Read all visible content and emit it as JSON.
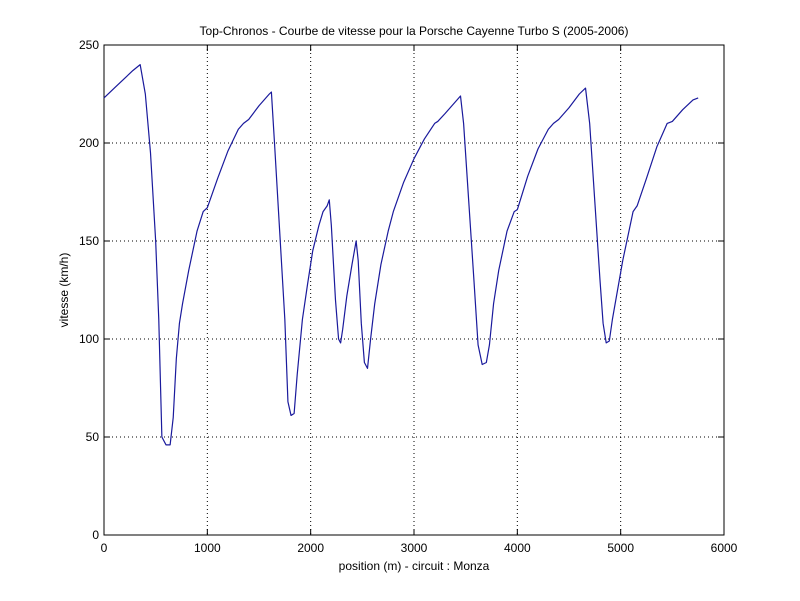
{
  "chart_data": {
    "type": "line",
    "title": "Top-Chronos - Courbe de vitesse pour la Porsche Cayenne Turbo S (2005-2006)",
    "xlabel": "position (m) - circuit : Monza",
    "ylabel": "vitesse (km/h)",
    "xlim": [
      0,
      6000
    ],
    "ylim": [
      0,
      250
    ],
    "xticks": [
      0,
      1000,
      2000,
      3000,
      4000,
      5000,
      6000
    ],
    "yticks": [
      0,
      50,
      100,
      150,
      200,
      250
    ],
    "xtick_labels": [
      "0",
      "1000",
      "2000",
      "3000",
      "4000",
      "5000",
      "6000"
    ],
    "ytick_labels": [
      "0",
      "50",
      "100",
      "150",
      "200",
      "250"
    ],
    "grid": true,
    "line_color": "#1a1a9c",
    "series": [
      {
        "points": [
          [
            0,
            223
          ],
          [
            100,
            228
          ],
          [
            200,
            233
          ],
          [
            280,
            237
          ],
          [
            350,
            240
          ],
          [
            400,
            225
          ],
          [
            450,
            195
          ],
          [
            500,
            150
          ],
          [
            530,
            110
          ],
          [
            560,
            50
          ],
          [
            600,
            46
          ],
          [
            640,
            46
          ],
          [
            670,
            60
          ],
          [
            700,
            90
          ],
          [
            730,
            108
          ],
          [
            760,
            118
          ],
          [
            820,
            135
          ],
          [
            900,
            155
          ],
          [
            960,
            165
          ],
          [
            1000,
            167
          ],
          [
            1100,
            182
          ],
          [
            1200,
            196
          ],
          [
            1300,
            207
          ],
          [
            1350,
            210
          ],
          [
            1400,
            212
          ],
          [
            1500,
            219
          ],
          [
            1600,
            225
          ],
          [
            1620,
            226
          ],
          [
            1650,
            200
          ],
          [
            1700,
            155
          ],
          [
            1750,
            110
          ],
          [
            1780,
            68
          ],
          [
            1810,
            61
          ],
          [
            1840,
            62
          ],
          [
            1870,
            82
          ],
          [
            1920,
            110
          ],
          [
            1970,
            128
          ],
          [
            2020,
            145
          ],
          [
            2080,
            158
          ],
          [
            2120,
            165
          ],
          [
            2160,
            168
          ],
          [
            2180,
            171
          ],
          [
            2200,
            158
          ],
          [
            2240,
            120
          ],
          [
            2270,
            100
          ],
          [
            2290,
            98
          ],
          [
            2310,
            105
          ],
          [
            2350,
            122
          ],
          [
            2400,
            138
          ],
          [
            2440,
            150
          ],
          [
            2460,
            140
          ],
          [
            2490,
            108
          ],
          [
            2520,
            88
          ],
          [
            2550,
            85
          ],
          [
            2580,
            100
          ],
          [
            2620,
            118
          ],
          [
            2680,
            138
          ],
          [
            2750,
            155
          ],
          [
            2800,
            165
          ],
          [
            2900,
            180
          ],
          [
            3000,
            192
          ],
          [
            3100,
            202
          ],
          [
            3200,
            210
          ],
          [
            3230,
            211
          ],
          [
            3300,
            215
          ],
          [
            3400,
            221
          ],
          [
            3450,
            224
          ],
          [
            3480,
            210
          ],
          [
            3530,
            170
          ],
          [
            3580,
            130
          ],
          [
            3620,
            97
          ],
          [
            3660,
            87
          ],
          [
            3700,
            88
          ],
          [
            3730,
            97
          ],
          [
            3770,
            118
          ],
          [
            3820,
            135
          ],
          [
            3900,
            155
          ],
          [
            3970,
            165
          ],
          [
            4000,
            166
          ],
          [
            4100,
            183
          ],
          [
            4200,
            197
          ],
          [
            4300,
            207
          ],
          [
            4350,
            210
          ],
          [
            4400,
            212
          ],
          [
            4500,
            218
          ],
          [
            4600,
            225
          ],
          [
            4660,
            228
          ],
          [
            4700,
            210
          ],
          [
            4750,
            170
          ],
          [
            4800,
            130
          ],
          [
            4830,
            108
          ],
          [
            4860,
            98
          ],
          [
            4890,
            99
          ],
          [
            4920,
            110
          ],
          [
            4960,
            122
          ],
          [
            5020,
            140
          ],
          [
            5080,
            155
          ],
          [
            5120,
            165
          ],
          [
            5160,
            168
          ],
          [
            5250,
            182
          ],
          [
            5350,
            198
          ],
          [
            5450,
            210
          ],
          [
            5500,
            211
          ],
          [
            5600,
            217
          ],
          [
            5700,
            222
          ],
          [
            5750,
            223
          ]
        ]
      }
    ]
  }
}
